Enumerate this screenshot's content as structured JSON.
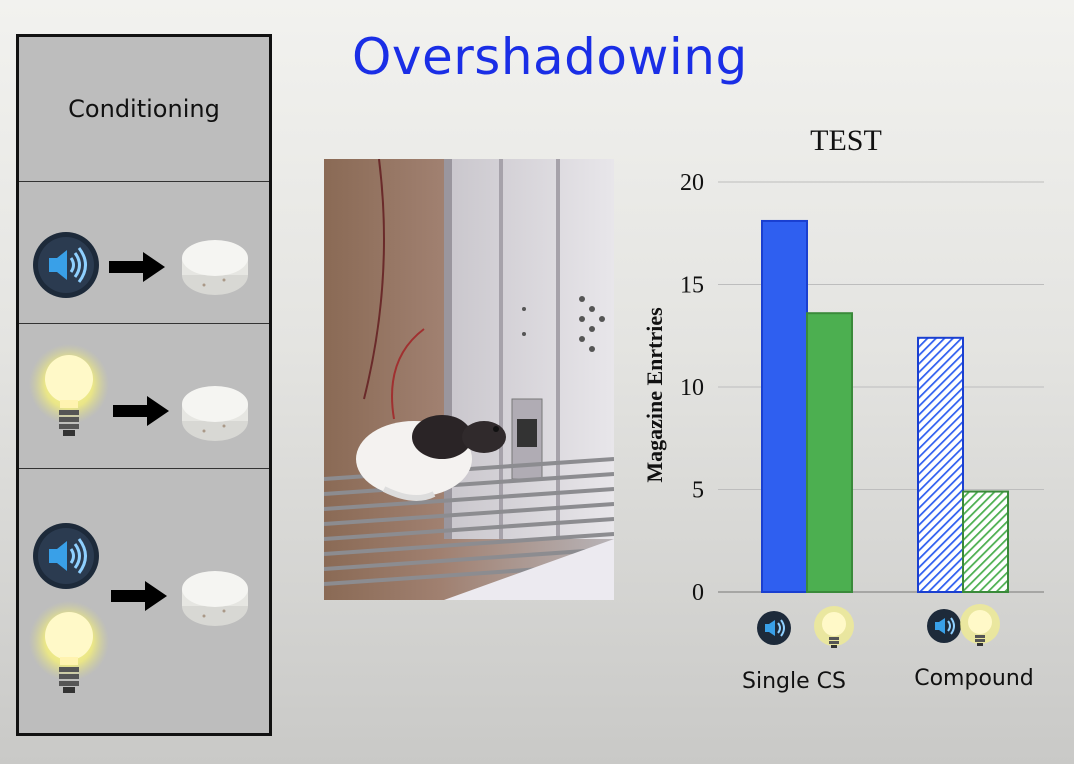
{
  "slide": {
    "title": "Overshadowing",
    "panel_heading": "Conditioning",
    "rows": [
      {
        "cue": [
          "tone-speaker"
        ],
        "outcome": "food-pellet"
      },
      {
        "cue": [
          "light-bulb"
        ],
        "outcome": "food-pellet"
      },
      {
        "cue": [
          "tone-speaker",
          "light-bulb"
        ],
        "outcome": "food-pellet"
      }
    ]
  },
  "colors": {
    "blue": "#2f5ff0",
    "green": "#4caf50",
    "title": "#1a2ee6"
  },
  "chart_data": {
    "type": "bar",
    "title": "TEST",
    "ylabel": "Magazine Enrtries",
    "ylim": [
      0,
      20
    ],
    "yticks": [
      0,
      5,
      10,
      15,
      20
    ],
    "categories": [
      "Single CS",
      "Compound"
    ],
    "series": [
      {
        "cue": "tone",
        "color": "#2f5ff0",
        "values": [
          18.1,
          12.4
        ],
        "fill": [
          "solid",
          "hatched"
        ]
      },
      {
        "cue": "light",
        "color": "#4caf50",
        "values": [
          13.6,
          4.9
        ],
        "fill": [
          "solid",
          "hatched"
        ]
      }
    ],
    "grid": true
  }
}
